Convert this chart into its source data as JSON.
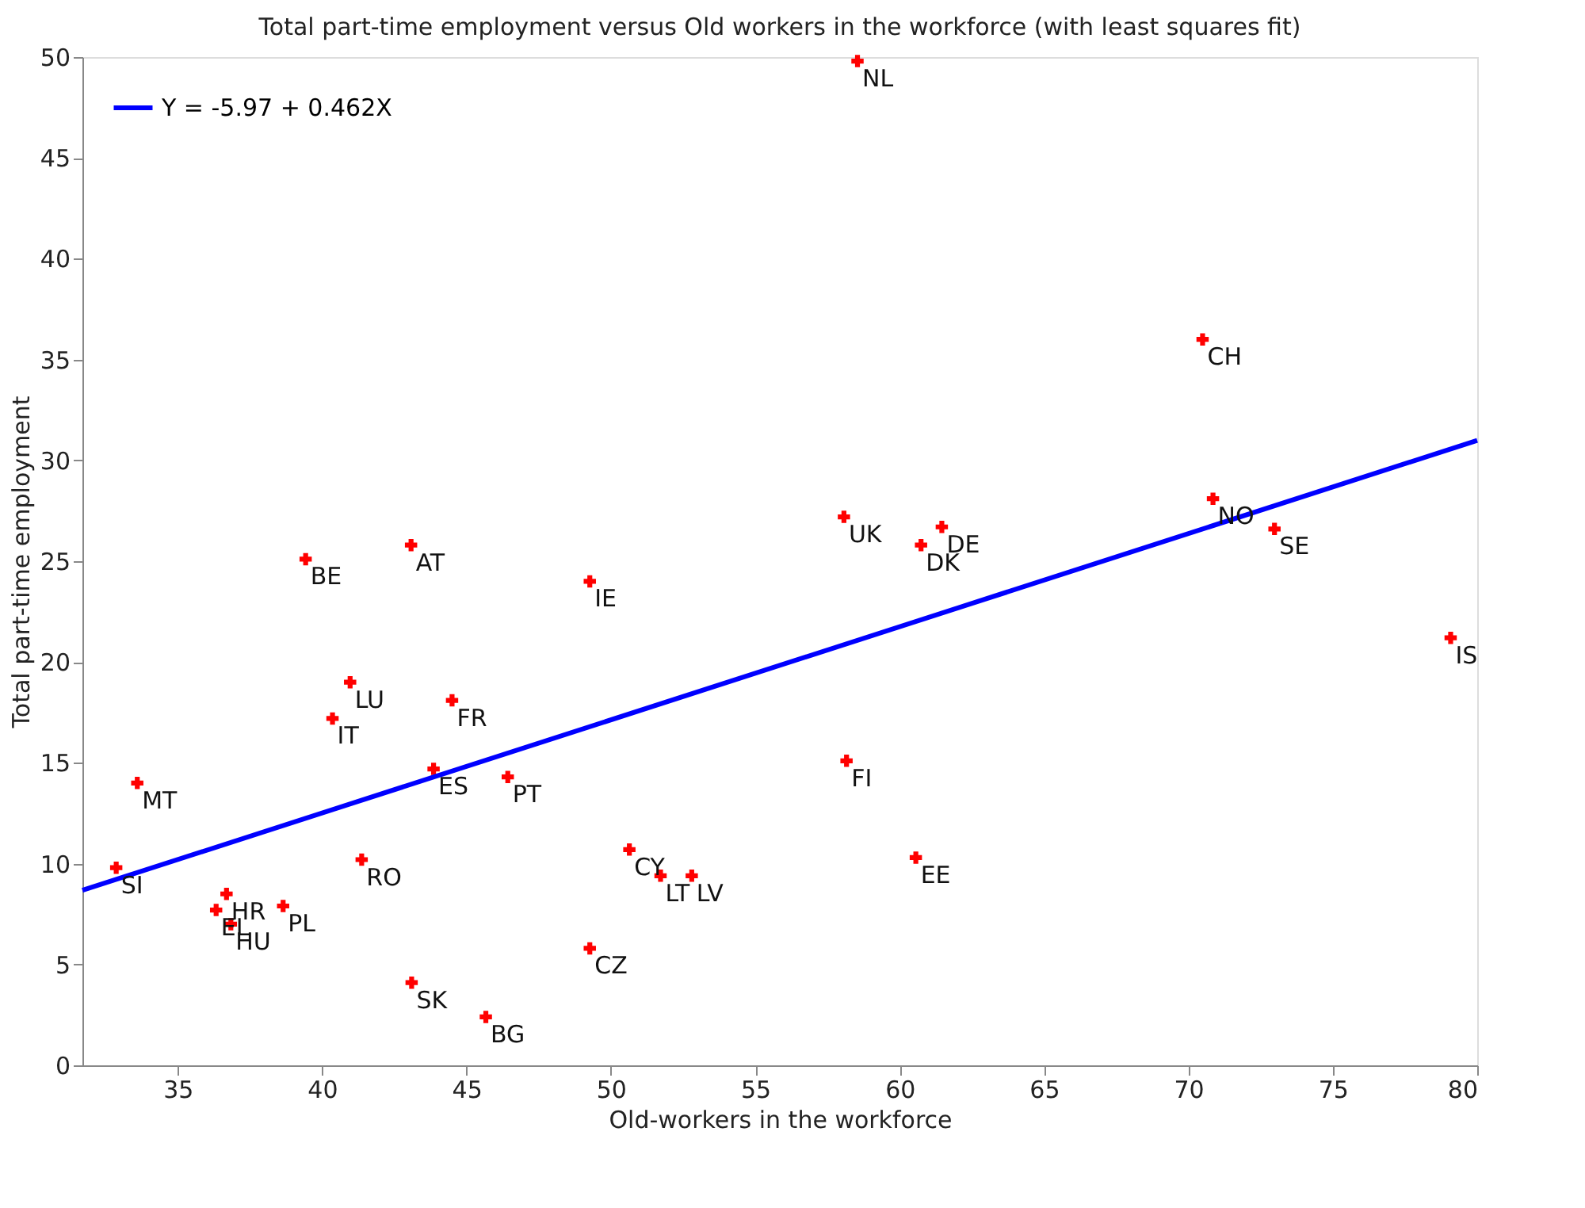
{
  "chart_data": {
    "type": "scatter",
    "title": "Total part-time employment versus Old workers in the workforce (with least squares fit)",
    "xlabel": "Old-workers in the workforce",
    "ylabel": "Total part-time employment",
    "xlim": [
      31.7,
      80
    ],
    "ylim": [
      0,
      50
    ],
    "xticks": [
      35,
      40,
      45,
      50,
      55,
      60,
      65,
      70,
      75,
      80
    ],
    "yticks": [
      0,
      5,
      10,
      15,
      20,
      25,
      30,
      35,
      40,
      45,
      50
    ],
    "grid": false,
    "legend": "top left",
    "marker": "cross",
    "series": [
      {
        "color": "#ff0000",
        "x": [
          32.87,
          33.6,
          36.33,
          36.69,
          36.84,
          38.65,
          39.43,
          40.36,
          40.97,
          41.37,
          43.08,
          43.1,
          43.86,
          44.5,
          45.67,
          46.43,
          49.27,
          49.27,
          50.64,
          51.72,
          52.8,
          58.54,
          58.07,
          61.46,
          60.74,
          70.49,
          70.85,
          72.98,
          79.08,
          58.16,
          60.56
        ],
        "values": [
          9.8,
          14.0,
          7.7,
          8.5,
          7.0,
          7.9,
          25.1,
          17.2,
          19.0,
          10.2,
          25.8,
          4.1,
          14.7,
          18.1,
          2.4,
          14.3,
          24.0,
          5.8,
          10.7,
          9.4,
          9.4,
          49.8,
          27.2,
          26.7,
          25.8,
          36.0,
          28.1,
          26.6,
          21.2,
          15.1,
          10.3
        ]
      },
      {
        "type": "line",
        "name": "Y = -5.97 + 0.462X",
        "color": "#0000ff",
        "line_style": "solid",
        "marker": "none",
        "x": [
          31.7,
          80
        ],
        "values": [
          8.68,
          30.99
        ]
      }
    ],
    "annotations": [
      {
        "text": "SI",
        "x": 32.87,
        "y": 9.8
      },
      {
        "text": "MT",
        "x": 33.6,
        "y": 14.0
      },
      {
        "text": "EL",
        "x": 36.33,
        "y": 7.7
      },
      {
        "text": "HR",
        "x": 36.69,
        "y": 8.5
      },
      {
        "text": "HU",
        "x": 36.84,
        "y": 7.0
      },
      {
        "text": "PL",
        "x": 38.65,
        "y": 7.9
      },
      {
        "text": "BE",
        "x": 39.43,
        "y": 25.1
      },
      {
        "text": "IT",
        "x": 40.36,
        "y": 17.2
      },
      {
        "text": "LU",
        "x": 40.97,
        "y": 19.0
      },
      {
        "text": "RO",
        "x": 41.37,
        "y": 10.2
      },
      {
        "text": "AT",
        "x": 43.08,
        "y": 25.8
      },
      {
        "text": "SK",
        "x": 43.1,
        "y": 4.1
      },
      {
        "text": "ES",
        "x": 43.86,
        "y": 14.7
      },
      {
        "text": "FR",
        "x": 44.5,
        "y": 18.1
      },
      {
        "text": "BG",
        "x": 45.67,
        "y": 2.4
      },
      {
        "text": "PT",
        "x": 46.43,
        "y": 14.3
      },
      {
        "text": "IE",
        "x": 49.27,
        "y": 24.0
      },
      {
        "text": "CZ",
        "x": 49.27,
        "y": 5.8
      },
      {
        "text": "CY",
        "x": 50.64,
        "y": 10.7
      },
      {
        "text": "LT",
        "x": 51.72,
        "y": 9.4
      },
      {
        "text": "LV",
        "x": 52.8,
        "y": 9.4
      },
      {
        "text": "NL",
        "x": 58.54,
        "y": 49.8
      },
      {
        "text": "UK",
        "x": 58.07,
        "y": 27.2
      },
      {
        "text": "DE",
        "x": 61.46,
        "y": 26.7
      },
      {
        "text": "DK",
        "x": 60.74,
        "y": 25.8
      },
      {
        "text": "CH",
        "x": 70.49,
        "y": 36.0
      },
      {
        "text": "NO",
        "x": 70.85,
        "y": 28.1
      },
      {
        "text": "SE",
        "x": 72.98,
        "y": 26.6
      },
      {
        "text": "IS",
        "x": 79.08,
        "y": 21.2
      },
      {
        "text": "FI",
        "x": 58.16,
        "y": 15.1
      },
      {
        "text": "EE",
        "x": 60.56,
        "y": 10.3
      }
    ]
  }
}
